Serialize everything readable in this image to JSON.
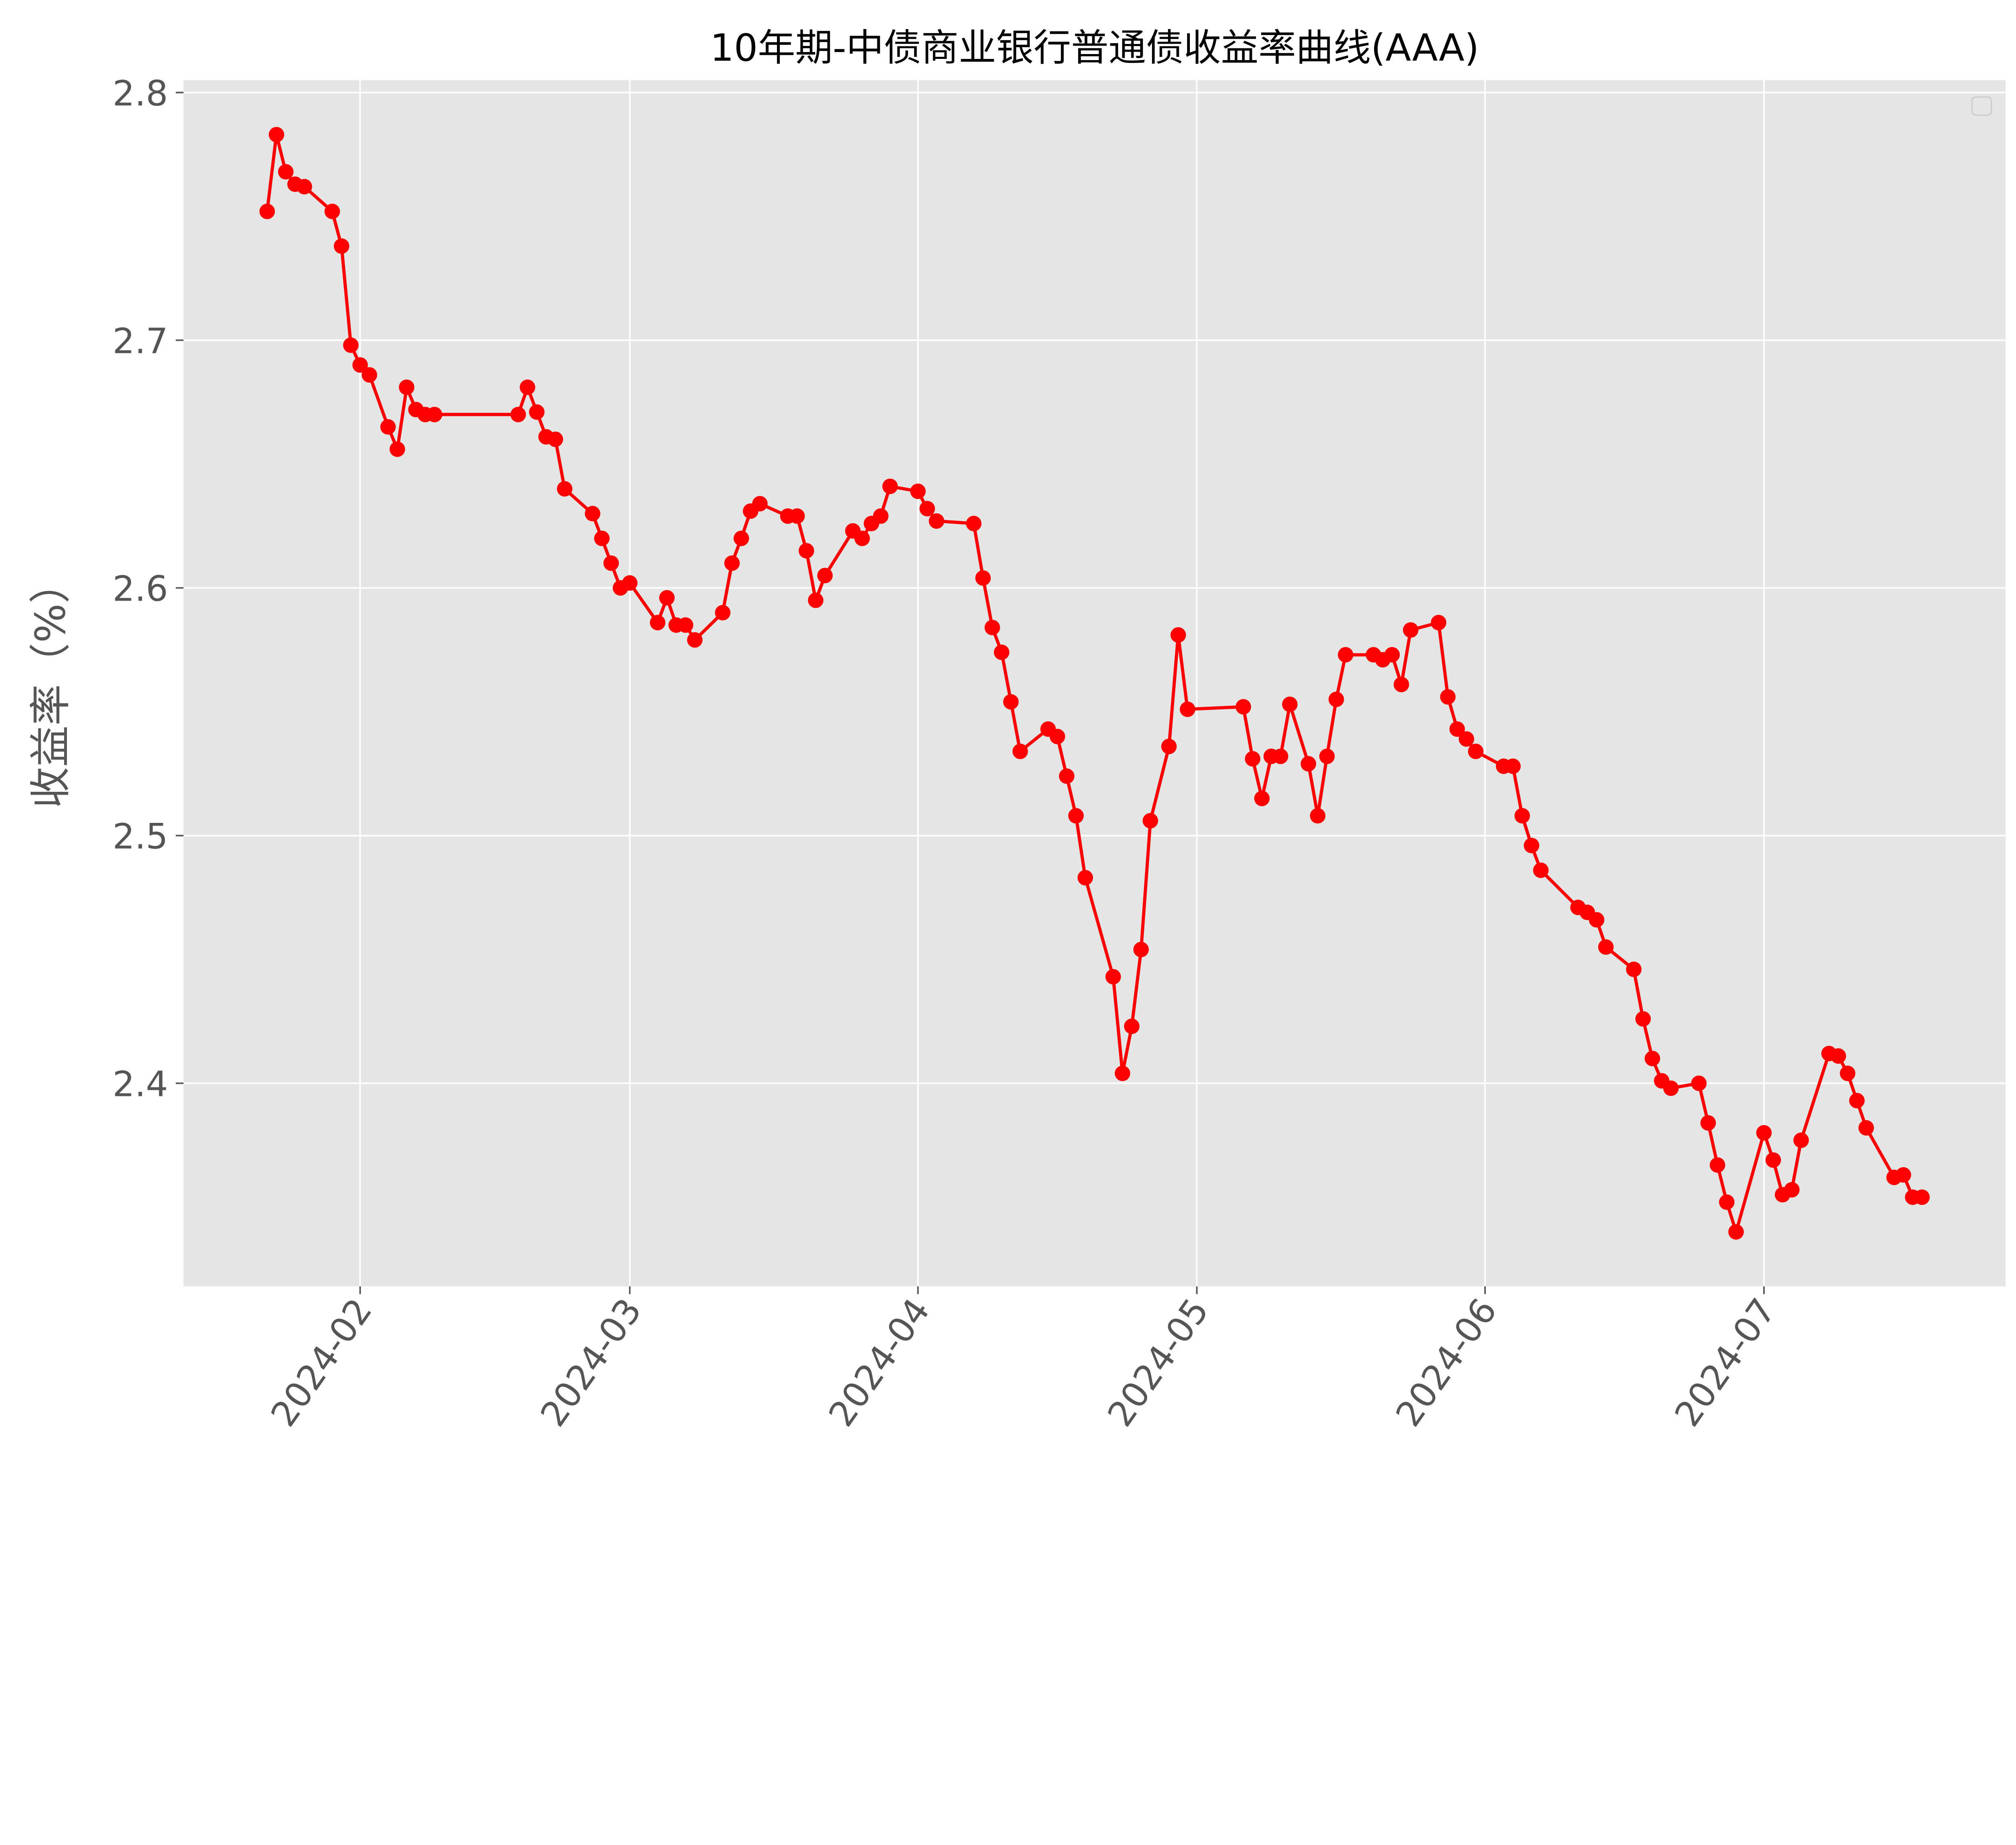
{
  "chart_data": {
    "type": "line",
    "title": "10年期-中债商业银行普通债收益率曲线(AAA)",
    "xlabel": "",
    "ylabel": "收益率（%）",
    "ylim": [
      2.318,
      2.805
    ],
    "xlim": [
      "2024-01-13",
      "2024-07-27"
    ],
    "grid": true,
    "legend": "top-right (empty)",
    "colors": {
      "line": "#ff0000",
      "background": "#e5e5e5",
      "grid": "#ffffff"
    },
    "yticks": [
      "2.4",
      "2.5",
      "2.6",
      "2.7",
      "2.8"
    ],
    "xticks": [
      "2024-02",
      "2024-03",
      "2024-04",
      "2024-05",
      "2024-06",
      "2024-07"
    ],
    "series": [
      {
        "x": [
          "2024-01-22",
          "2024-01-23",
          "2024-01-24",
          "2024-01-25",
          "2024-01-26",
          "2024-01-29",
          "2024-01-30",
          "2024-01-31",
          "2024-02-01",
          "2024-02-02",
          "2024-02-04",
          "2024-02-05",
          "2024-02-06",
          "2024-02-07",
          "2024-02-08",
          "2024-02-09",
          "2024-02-18",
          "2024-02-19",
          "2024-02-20",
          "2024-02-21",
          "2024-02-22",
          "2024-02-23",
          "2024-02-26",
          "2024-02-27",
          "2024-02-28",
          "2024-02-29",
          "2024-03-01",
          "2024-03-04",
          "2024-03-05",
          "2024-03-06",
          "2024-03-07",
          "2024-03-08",
          "2024-03-11",
          "2024-03-12",
          "2024-03-13",
          "2024-03-14",
          "2024-03-15",
          "2024-03-18",
          "2024-03-19",
          "2024-03-20",
          "2024-03-21",
          "2024-03-22",
          "2024-03-25",
          "2024-03-26",
          "2024-03-27",
          "2024-03-28",
          "2024-03-29",
          "2024-04-01",
          "2024-04-02",
          "2024-04-03",
          "2024-04-07",
          "2024-04-08",
          "2024-04-09",
          "2024-04-10",
          "2024-04-11",
          "2024-04-12",
          "2024-04-15",
          "2024-04-16",
          "2024-04-17",
          "2024-04-18",
          "2024-04-19",
          "2024-04-22",
          "2024-04-23",
          "2024-04-24",
          "2024-04-25",
          "2024-04-26",
          "2024-04-28",
          "2024-04-29",
          "2024-04-30",
          "2024-05-06",
          "2024-05-07",
          "2024-05-08",
          "2024-05-09",
          "2024-05-10",
          "2024-05-11",
          "2024-05-13",
          "2024-05-14",
          "2024-05-15",
          "2024-05-16",
          "2024-05-17",
          "2024-05-20",
          "2024-05-21",
          "2024-05-22",
          "2024-05-23",
          "2024-05-24",
          "2024-05-27",
          "2024-05-28",
          "2024-05-29",
          "2024-05-30",
          "2024-05-31",
          "2024-06-03",
          "2024-06-04",
          "2024-06-05",
          "2024-06-06",
          "2024-06-07",
          "2024-06-11",
          "2024-06-12",
          "2024-06-13",
          "2024-06-14",
          "2024-06-17",
          "2024-06-18",
          "2024-06-19",
          "2024-06-20",
          "2024-06-21",
          "2024-06-24",
          "2024-06-25",
          "2024-06-26",
          "2024-06-27",
          "2024-06-28",
          "2024-07-01",
          "2024-07-02",
          "2024-07-03",
          "2024-07-04",
          "2024-07-05",
          "2024-07-08",
          "2024-07-09",
          "2024-07-10",
          "2024-07-11",
          "2024-07-12",
          "2024-07-15",
          "2024-07-16",
          "2024-07-17",
          "2024-07-18"
        ],
        "y": [
          2.752,
          2.783,
          2.768,
          2.763,
          2.762,
          2.752,
          2.738,
          2.698,
          2.69,
          2.686,
          2.665,
          2.656,
          2.681,
          2.672,
          2.67,
          2.67,
          2.67,
          2.681,
          2.671,
          2.661,
          2.66,
          2.64,
          2.63,
          2.62,
          2.61,
          2.6,
          2.602,
          2.586,
          2.596,
          2.585,
          2.585,
          2.579,
          2.59,
          2.61,
          2.62,
          2.631,
          2.634,
          2.629,
          2.629,
          2.615,
          2.595,
          2.605,
          2.623,
          2.62,
          2.626,
          2.629,
          2.641,
          2.639,
          2.632,
          2.627,
          2.626,
          2.604,
          2.584,
          2.574,
          2.554,
          2.534,
          2.543,
          2.54,
          2.524,
          2.508,
          2.483,
          2.443,
          2.404,
          2.423,
          2.454,
          2.506,
          2.536,
          2.581,
          2.551,
          2.552,
          2.531,
          2.515,
          2.532,
          2.532,
          2.553,
          2.529,
          2.508,
          2.532,
          2.555,
          2.573,
          2.573,
          2.571,
          2.573,
          2.561,
          2.583,
          2.586,
          2.556,
          2.543,
          2.539,
          2.534,
          2.528,
          2.528,
          2.508,
          2.496,
          2.486,
          2.471,
          2.469,
          2.466,
          2.455,
          2.446,
          2.426,
          2.41,
          2.401,
          2.398,
          2.4,
          2.384,
          2.367,
          2.352,
          2.34,
          2.38,
          2.369,
          2.355,
          2.357,
          2.377,
          2.412,
          2.411,
          2.404,
          2.393,
          2.382,
          2.362,
          2.363,
          2.354,
          2.354
        ]
      }
    ]
  }
}
